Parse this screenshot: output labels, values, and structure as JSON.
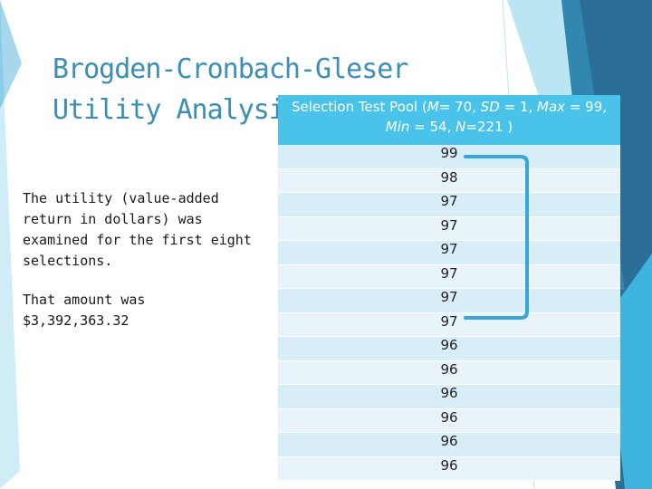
{
  "title": {
    "line1": "Brogden-Cronbach-Gleser",
    "line2": "Utility Analysis"
  },
  "body": {
    "paragraph1": "The utility (value-added return in dollars) was examined for the first eight selections.",
    "paragraph2": "That amount was $3,392,363.32"
  },
  "table": {
    "header": {
      "line1_a": "Selection Test Pool (",
      "line1_m": "M",
      "line1_b": "= 70, ",
      "line1_sd": "SD",
      "line1_c": " = 1, ",
      "line1_max": "Max",
      "line1_d": " = 99,",
      "line2_min": "Min",
      "line2_a": " = 54, ",
      "line2_n": "N",
      "line2_b": "=221 )"
    },
    "scores": [
      "99",
      "98",
      "97",
      "97",
      "97",
      "97",
      "97",
      "97",
      "96",
      "96",
      "96",
      "96",
      "96",
      "96"
    ],
    "bracket_note_rows": 8
  },
  "colors": {
    "title": "#3b8fb4",
    "header_bg": "#4ac3ea",
    "row_light": "#e8f4fa",
    "row_dark": "#d7edf7",
    "bracket": "#3aa6d8",
    "accent_dark": "#2b6f99",
    "accent_light": "#3fb4df"
  }
}
